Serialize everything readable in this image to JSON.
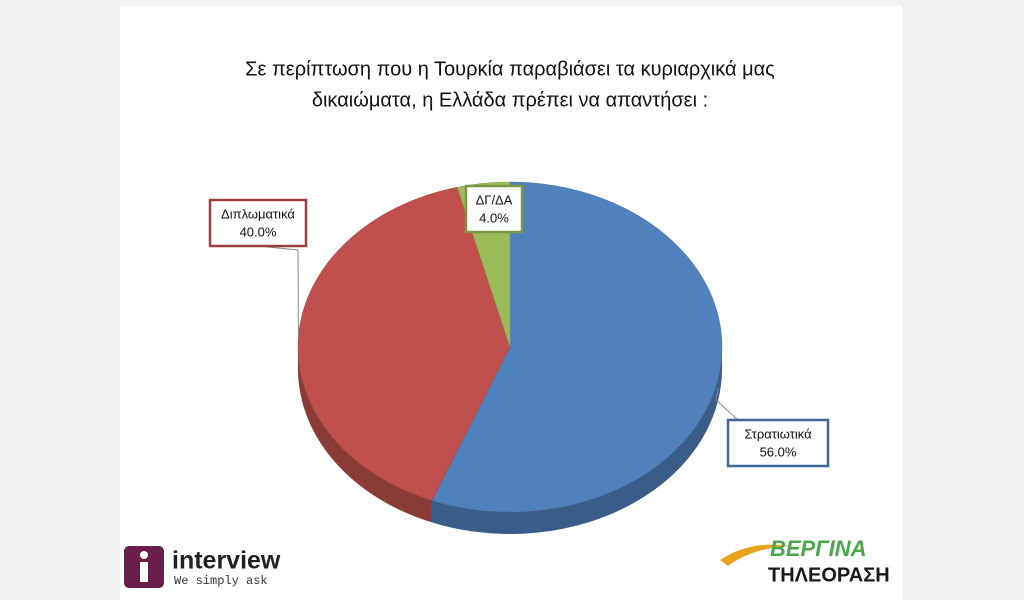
{
  "chart_data": {
    "type": "pie",
    "title": [
      "Σε περίπτωση  που η Τουρκία παραβιάσει τα κυριαρχικά μας",
      "δικαιώματα, η Ελλάδα πρέπει να απαντήσει :"
    ],
    "categories": [
      "Στρατιωτικά",
      "Διπλωματικά",
      "ΔΓ/ΔΑ"
    ],
    "values": [
      56,
      40,
      4
    ],
    "value_labels": [
      "56.0%",
      "40.0%",
      "4.0%"
    ],
    "colors": [
      "#4f81bd",
      "#c0504d",
      "#9bbb59"
    ]
  },
  "logos": {
    "left": {
      "name": "interview",
      "tagline": "We simply ask"
    },
    "right": {
      "name": "ΒΕΡΓΙΝΑ",
      "tagline": "ΤΗΛΕΟΡΑΣΗ"
    }
  }
}
